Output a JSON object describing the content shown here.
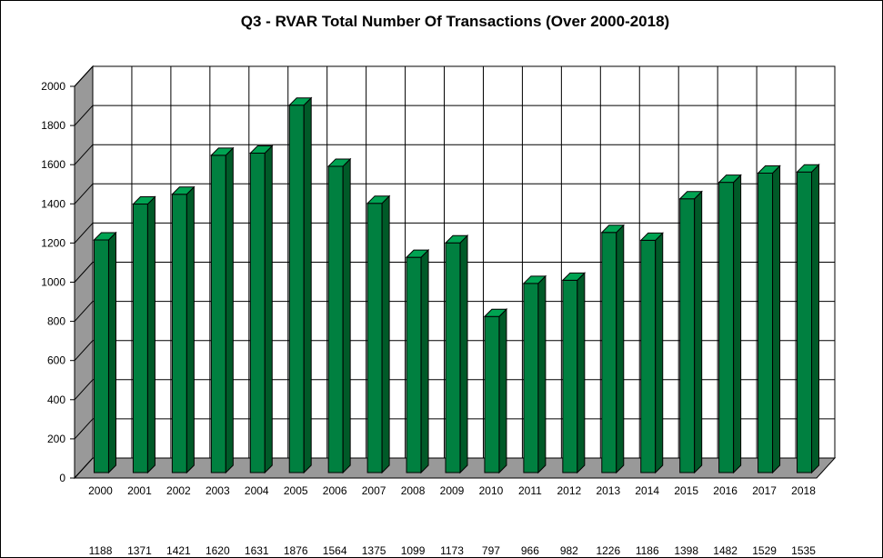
{
  "chart_data": {
    "type": "bar",
    "title": "Q3 - RVAR  Total Number Of Transactions (Over 2000-2018)",
    "categories": [
      "2000",
      "2001",
      "2002",
      "2003",
      "2004",
      "2005",
      "2006",
      "2007",
      "2008",
      "2009",
      "2010",
      "2011",
      "2012",
      "2013",
      "2014",
      "2015",
      "2016",
      "2017",
      "2018"
    ],
    "values": [
      1188,
      1371,
      1421,
      1620,
      1631,
      1876,
      1564,
      1375,
      1099,
      1173,
      797,
      966,
      982,
      1226,
      1186,
      1398,
      1482,
      1529,
      1535
    ],
    "ylim": [
      0,
      2000
    ],
    "yticks": [
      "0",
      "200",
      "400",
      "600",
      "800",
      "1000",
      "1200",
      "1400",
      "1600",
      "1800",
      "2000"
    ],
    "grid": true,
    "legend": "none",
    "style": "3d",
    "colors": {
      "bar_front": "#008040",
      "bar_side": "#005a28",
      "bar_top": "#00a352",
      "wall": "#999999",
      "floor": "#999999"
    }
  }
}
